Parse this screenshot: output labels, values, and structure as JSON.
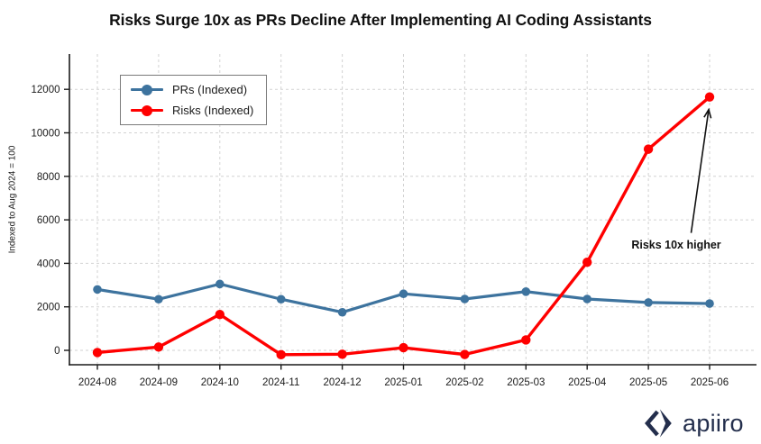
{
  "title": "Risks Surge 10x as PRs Decline After Implementing AI Coding Assistants",
  "colors": {
    "prs_blue": "#3d739e",
    "risks_red": "#ff0000",
    "grid_gray": "#d2d2d2",
    "axis_black": "#1a1a1a",
    "annotation_black": "#111111",
    "logo_navy": "#232e4c"
  },
  "chart_data": {
    "type": "line",
    "categories": [
      "2024-08",
      "2024-09",
      "2024-10",
      "2024-11",
      "2024-12",
      "2025-01",
      "2025-02",
      "2025-03",
      "2025-04",
      "2025-05",
      "2025-06"
    ],
    "series": [
      {
        "name": "PRs (Indexed)",
        "color": "#3d739e",
        "values": [
          2800,
          2350,
          3050,
          2350,
          1750,
          2600,
          2360,
          2700,
          2360,
          2200,
          2150
        ]
      },
      {
        "name": "Risks (Indexed)",
        "color": "#ff0000",
        "values": [
          -100,
          150,
          1650,
          -200,
          -180,
          120,
          -190,
          480,
          4050,
          9250,
          11650
        ]
      }
    ],
    "xlabel": "",
    "ylabel": "Indexed to Aug 2024 = 100",
    "yticks": [
      0,
      2000,
      4000,
      6000,
      8000,
      10000,
      12000
    ],
    "ylim": [
      -660,
      13630
    ],
    "grid": "dashed",
    "legend_position": "upper-left",
    "annotation": {
      "text": "Risks 10x higher",
      "points_to": "last Risks point"
    }
  },
  "logo": {
    "text": "apiiro"
  }
}
